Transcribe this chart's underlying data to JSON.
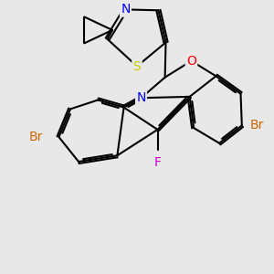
{
  "bg": "#e8e8e8",
  "bond_color": "#000000",
  "lw": 1.5,
  "colors": {
    "S": "#cccc00",
    "N": "#0000ff",
    "O": "#ff0000",
    "F": "#cc00cc",
    "Br": "#cc6600"
  },
  "fs": 10.0
}
